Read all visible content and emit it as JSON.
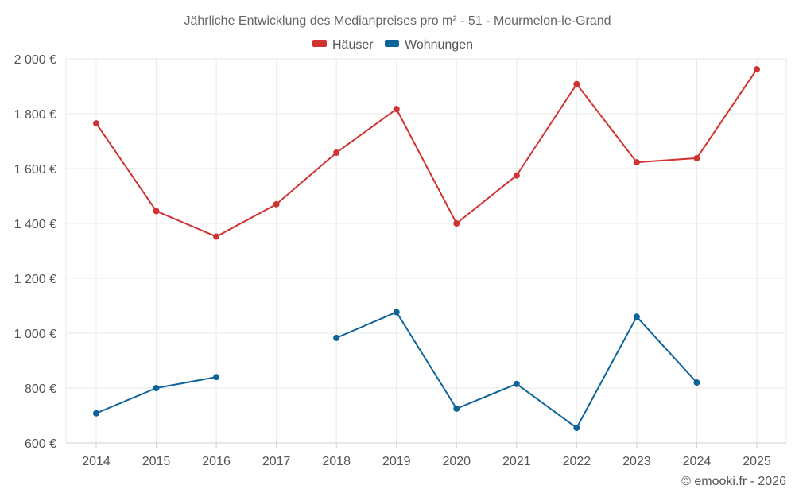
{
  "chart_data": {
    "type": "line",
    "title": "Jährliche Entwicklung des Medianpreises pro m² - 51 - Mourmelon-le-Grand",
    "x": [
      "2014",
      "2015",
      "2016",
      "2017",
      "2018",
      "2019",
      "2020",
      "2021",
      "2022",
      "2023",
      "2024",
      "2025"
    ],
    "y_ticks": [
      "600 €",
      "800 €",
      "1 000 €",
      "1 200 €",
      "1 400 €",
      "1 600 €",
      "1 800 €",
      "2 000 €"
    ],
    "ylim": [
      600,
      2000
    ],
    "grid": true,
    "legend_position": "top-center",
    "series": [
      {
        "name": "Häuser",
        "color": "#d03131",
        "values": [
          1765,
          1445,
          1352,
          1470,
          1658,
          1817,
          1400,
          1575,
          1908,
          1623,
          1638,
          1962
        ]
      },
      {
        "name": "Wohnungen",
        "color": "#0e649a",
        "values": [
          708,
          800,
          840,
          null,
          983,
          1077,
          725,
          815,
          655,
          1060,
          820,
          null
        ]
      }
    ]
  },
  "credit": "© emooki.fr - 2026"
}
